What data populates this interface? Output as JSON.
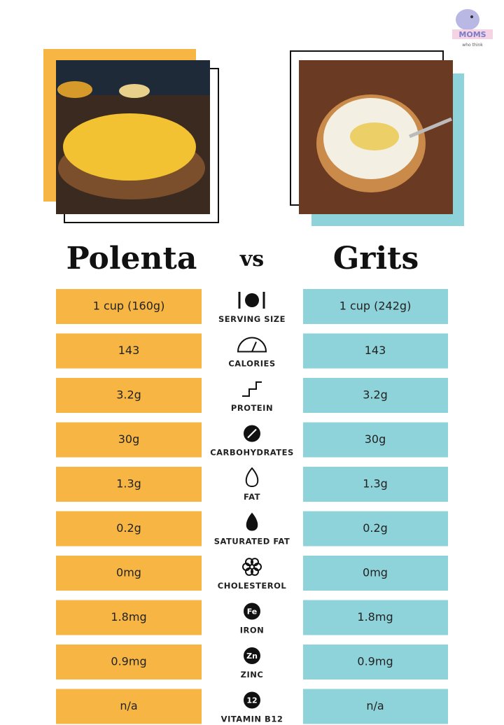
{
  "logo": {
    "title": "MOMS",
    "subtitle": "who think"
  },
  "header": {
    "left": "Polenta",
    "middle": "vs",
    "right": "Grits"
  },
  "rows": [
    {
      "left": "1 cup (160g)",
      "label": "SERVING SIZE",
      "right": "1 cup (242g)"
    },
    {
      "left": "143",
      "label": "CALORIES",
      "right": "143"
    },
    {
      "left": "3.2g",
      "label": "PROTEIN",
      "right": "3.2g"
    },
    {
      "left": "30g",
      "label": "CARBOHYDRATES",
      "right": "30g"
    },
    {
      "left": "1.3g",
      "label": "FAT",
      "right": "1.3g"
    },
    {
      "left": "0.2g",
      "label": "SATURATED FAT",
      "right": "0.2g"
    },
    {
      "left": "0mg",
      "label": "CHOLESTEROL",
      "right": "0mg"
    },
    {
      "left": "1.8mg",
      "label": "IRON",
      "icon": "Fe",
      "right": "1.8mg"
    },
    {
      "left": "0.9mg",
      "label": "ZINC",
      "icon": "Zn",
      "right": "0.9mg"
    },
    {
      "left": "n/a",
      "label": "VITAMIN B12",
      "icon": "12",
      "right": "n/a"
    }
  ]
}
